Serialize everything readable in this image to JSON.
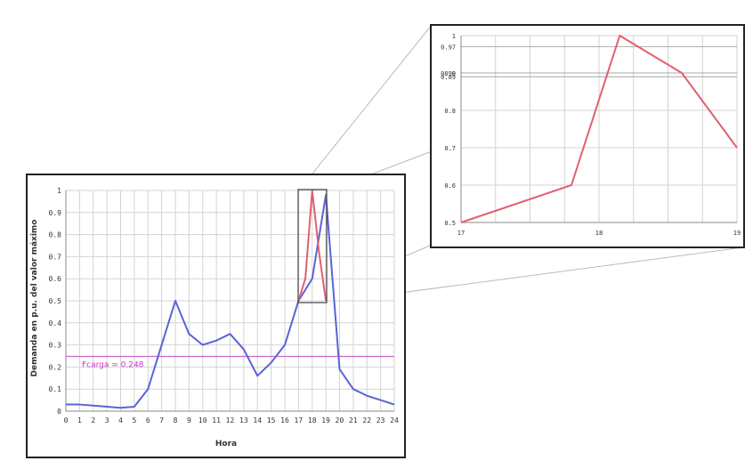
{
  "chart_data": [
    {
      "type": "line",
      "xlabel": "Hora",
      "ylabel": "Demanda en p.u. del valor máximo",
      "xlim": [
        0,
        24
      ],
      "ylim": [
        0,
        1
      ],
      "x_ticks": [
        "0",
        "1",
        "2",
        "3",
        "4",
        "5",
        "6",
        "7",
        "8",
        "9",
        "10",
        "11",
        "12",
        "13",
        "14",
        "15",
        "16",
        "17",
        "18",
        "19",
        "20",
        "21",
        "22",
        "23",
        "24"
      ],
      "y_ticks": [
        "0",
        "0.1",
        "0.2",
        "0.3",
        "0.4",
        "0.5",
        "0.6",
        "0.7",
        "0.8",
        "0.9",
        "1"
      ],
      "grid": true,
      "series": [
        {
          "color": "#5b63d6",
          "x": [
            0,
            1,
            2,
            3,
            4,
            5,
            6,
            7,
            8,
            9,
            10,
            11,
            12,
            13,
            14,
            15,
            16,
            17,
            18,
            19,
            20,
            21,
            22,
            23,
            24
          ],
          "y": [
            0.03,
            0.03,
            0.025,
            0.02,
            0.015,
            0.02,
            0.1,
            0.3,
            0.5,
            0.35,
            0.3,
            0.32,
            0.35,
            0.28,
            0.16,
            0.22,
            0.3,
            0.5,
            0.6,
            0.98,
            0.19,
            0.1,
            0.07,
            0.05,
            0.03
          ]
        },
        {
          "color": "#e06070",
          "x": [
            17,
            17.5,
            18,
            18.5,
            19
          ],
          "y": [
            0.5,
            0.6,
            1.0,
            0.72,
            0.5
          ]
        }
      ],
      "annotations": [
        {
          "text": "Fcarga = 0.248",
          "y": 0.248,
          "color": "#cc66cc"
        }
      ]
    },
    {
      "type": "line",
      "xlim": [
        17,
        19
      ],
      "ylim": [
        0.5,
        1
      ],
      "x_ticks": [
        "17",
        "18",
        "19"
      ],
      "y_ticks": [
        "0.5",
        "0.6",
        "0.7",
        "0.8",
        "0.9",
        "1"
      ],
      "extra_y_ticks": [
        "0.97",
        "0.90",
        "0.89"
      ],
      "grid": true,
      "series": [
        {
          "color": "#e06070",
          "x": [
            17,
            17.8,
            18.15,
            18.6,
            19
          ],
          "y": [
            0.5,
            0.6,
            1.0,
            0.9,
            0.7
          ]
        }
      ]
    }
  ]
}
